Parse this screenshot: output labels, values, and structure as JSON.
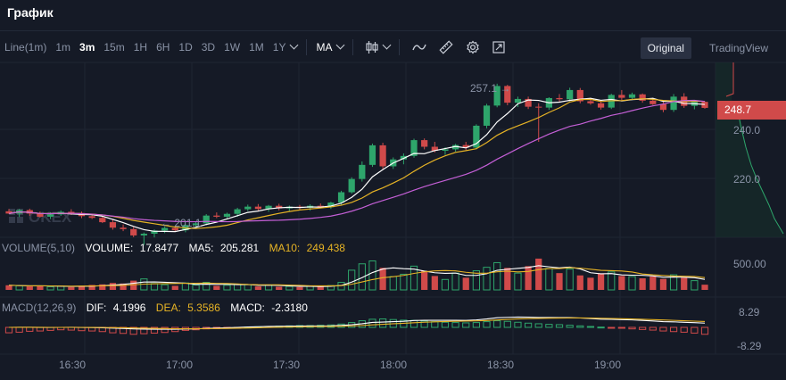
{
  "app": {
    "title": "График"
  },
  "toolbar": {
    "intervals": [
      "Line(1m)",
      "1m",
      "3m",
      "15m",
      "1H",
      "6H",
      "1D",
      "3D",
      "1W",
      "1M",
      "1Y"
    ],
    "active_interval": "3m",
    "indicator": "MA"
  },
  "view_tabs": [
    "Original",
    "TradingView"
  ],
  "active_view": "Original",
  "watermark": "OKEX",
  "price_axis": [
    "240.0",
    "220.0"
  ],
  "current_price": "248.7",
  "high_label": "257.1",
  "low_label": "201.1",
  "volume_legend": {
    "label": "VOLUME(5,10)",
    "volume_label": "VOLUME:",
    "volume": "17.8477",
    "ma5_label": "MA5:",
    "ma5": "205.281",
    "ma10_label": "MA10:",
    "ma10": "249.438"
  },
  "volume_axis": [
    "500.00"
  ],
  "macd_legend": {
    "label": "MACD(12,26,9)",
    "dif_label": "DIF:",
    "dif": "4.1996",
    "dea_label": "DEA:",
    "dea": "5.3586",
    "macd_label": "MACD:",
    "macd": "-2.3180"
  },
  "macd_axis": [
    "8.29",
    "-8.29"
  ],
  "time_axis": [
    "16:30",
    "17:00",
    "17:30",
    "18:00",
    "18:30",
    "19:00"
  ],
  "colors": {
    "background": "#151a26",
    "up": "#2ea56b",
    "down": "#d04a4a",
    "ma_white": "#ffffff",
    "ma_yellow": "#e6b325",
    "ma_purple": "#c45fd6"
  },
  "chart_data": {
    "type": "candlestick",
    "price_range": [
      205,
      262
    ],
    "ohlc": [
      [
        212.8,
        213.6,
        211.9,
        212.0
      ],
      [
        212.0,
        213.6,
        210.8,
        213.2
      ],
      [
        213.2,
        213.7,
        211.2,
        212.0
      ],
      [
        212.0,
        212.7,
        210.6,
        210.9
      ],
      [
        210.9,
        212.4,
        210.1,
        211.7
      ],
      [
        211.7,
        213.1,
        211.2,
        212.6
      ],
      [
        212.6,
        213.5,
        211.5,
        212.2
      ],
      [
        212.2,
        212.7,
        210.4,
        211.1
      ],
      [
        211.1,
        212.0,
        210.1,
        210.5
      ],
      [
        210.5,
        211.0,
        208.7,
        209.0
      ],
      [
        209.0,
        209.8,
        206.4,
        207.1
      ],
      [
        207.1,
        208.2,
        205.9,
        206.6
      ],
      [
        206.6,
        207.3,
        203.8,
        204.4
      ],
      [
        204.4,
        205.4,
        201.1,
        205.0
      ],
      [
        205.0,
        206.5,
        203.7,
        206.1
      ],
      [
        206.1,
        207.5,
        205.2,
        207.0
      ],
      [
        207.0,
        207.8,
        205.8,
        206.2
      ],
      [
        206.2,
        208.3,
        205.5,
        208.0
      ],
      [
        208.0,
        209.3,
        207.1,
        208.6
      ],
      [
        208.6,
        211.8,
        208.0,
        211.3
      ],
      [
        211.3,
        212.4,
        210.4,
        210.9
      ],
      [
        210.9,
        212.3,
        210.2,
        211.9
      ],
      [
        211.9,
        214.0,
        210.9,
        213.5
      ],
      [
        213.5,
        215.1,
        212.9,
        214.4
      ],
      [
        214.4,
        215.3,
        213.0,
        213.6
      ],
      [
        213.6,
        215.0,
        212.6,
        214.7
      ],
      [
        214.7,
        215.4,
        213.1,
        213.8
      ],
      [
        213.8,
        214.8,
        212.9,
        214.4
      ],
      [
        214.4,
        215.0,
        213.4,
        214.0
      ],
      [
        214.0,
        215.2,
        213.0,
        214.7
      ],
      [
        214.7,
        215.5,
        213.8,
        214.2
      ],
      [
        214.2,
        216.1,
        213.6,
        215.8
      ],
      [
        215.8,
        219.9,
        215.0,
        219.4
      ],
      [
        219.4,
        224.6,
        218.9,
        224.0
      ],
      [
        224.0,
        230.1,
        223.1,
        228.9
      ],
      [
        228.9,
        236.3,
        228.2,
        235.7
      ],
      [
        235.7,
        236.6,
        227.5,
        228.4
      ],
      [
        228.4,
        231.5,
        227.5,
        230.8
      ],
      [
        230.8,
        232.9,
        229.1,
        232.0
      ],
      [
        232.0,
        238.0,
        231.4,
        237.5
      ],
      [
        237.5,
        238.1,
        234.3,
        235.2
      ],
      [
        235.2,
        236.9,
        233.2,
        233.8
      ],
      [
        233.8,
        235.0,
        232.4,
        234.3
      ],
      [
        234.3,
        236.2,
        233.5,
        235.8
      ],
      [
        235.8,
        236.9,
        234.1,
        234.9
      ],
      [
        234.9,
        243.0,
        234.3,
        242.5
      ],
      [
        242.5,
        250.1,
        241.6,
        249.5
      ],
      [
        249.5,
        257.1,
        248.9,
        256.3
      ],
      [
        256.3,
        256.7,
        249.6,
        250.5
      ],
      [
        250.5,
        252.6,
        249.0,
        251.8
      ],
      [
        251.8,
        252.6,
        248.3,
        249.1
      ],
      [
        249.1,
        250.3,
        236.9,
        248.8
      ],
      [
        248.8,
        252.4,
        248.0,
        252.1
      ],
      [
        252.1,
        253.5,
        250.7,
        251.7
      ],
      [
        251.7,
        255.7,
        251.0,
        254.9
      ],
      [
        254.9,
        255.6,
        250.3,
        251.0
      ],
      [
        251.0,
        252.2,
        249.8,
        250.3
      ],
      [
        250.3,
        251.1,
        248.1,
        248.8
      ],
      [
        248.8,
        253.6,
        248.3,
        253.2
      ],
      [
        253.2,
        254.9,
        251.2,
        252.2
      ],
      [
        252.2,
        254.0,
        251.4,
        253.4
      ],
      [
        253.4,
        253.7,
        250.5,
        251.2
      ],
      [
        251.2,
        252.2,
        249.7,
        250.0
      ],
      [
        250.0,
        250.9,
        247.2,
        248.0
      ],
      [
        248.0,
        253.5,
        247.3,
        252.6
      ],
      [
        252.6,
        253.8,
        248.7,
        249.4
      ],
      [
        249.4,
        251.1,
        248.2,
        250.8
      ],
      [
        250.8,
        251.0,
        248.4,
        248.7
      ]
    ],
    "volume": [
      80,
      70,
      60,
      75,
      55,
      65,
      50,
      70,
      85,
      95,
      120,
      110,
      160,
      190,
      110,
      90,
      70,
      120,
      85,
      130,
      70,
      80,
      95,
      90,
      60,
      85,
      55,
      60,
      50,
      65,
      60,
      75,
      130,
      340,
      450,
      500,
      380,
      230,
      270,
      410,
      330,
      240,
      180,
      290,
      210,
      330,
      390,
      470,
      380,
      290,
      410,
      540,
      370,
      290,
      360,
      250,
      210,
      280,
      310,
      240,
      230,
      200,
      230,
      190,
      260,
      210,
      160,
      90
    ],
    "macd_hist": [
      -1.8,
      -1.6,
      -1.3,
      -1.2,
      -1.0,
      -0.8,
      -0.9,
      -1.1,
      -1.2,
      -1.4,
      -1.8,
      -2.0,
      -2.3,
      -2.1,
      -1.9,
      -1.7,
      -1.4,
      -1.0,
      -0.8,
      -0.5,
      -0.4,
      -0.3,
      -0.1,
      0.1,
      0.2,
      0.3,
      0.4,
      0.5,
      0.6,
      0.6,
      0.7,
      0.8,
      1.1,
      1.6,
      2.2,
      2.7,
      2.8,
      2.6,
      2.4,
      2.3,
      2.1,
      1.9,
      1.7,
      1.6,
      1.5,
      1.6,
      1.9,
      2.2,
      2.0,
      1.7,
      1.4,
      1.2,
      1.0,
      0.9,
      0.7,
      0.5,
      0.3,
      0.1,
      -0.1,
      -0.3,
      -0.5,
      -0.7,
      -0.9,
      -1.2,
      -1.4,
      -1.6,
      -1.9,
      -2.3
    ],
    "macd_range": [
      -8.29,
      8.29
    ],
    "volume_max": 600
  }
}
